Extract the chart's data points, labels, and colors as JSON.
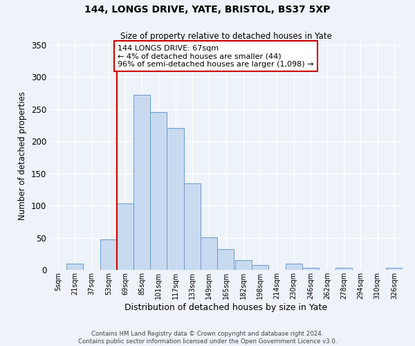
{
  "title": "144, LONGS DRIVE, YATE, BRISTOL, BS37 5XP",
  "subtitle": "Size of property relative to detached houses in Yate",
  "xlabel": "Distribution of detached houses by size in Yate",
  "ylabel": "Number of detached properties",
  "bin_labels": [
    "5sqm",
    "21sqm",
    "37sqm",
    "53sqm",
    "69sqm",
    "85sqm",
    "101sqm",
    "117sqm",
    "133sqm",
    "149sqm",
    "165sqm",
    "182sqm",
    "198sqm",
    "214sqm",
    "230sqm",
    "246sqm",
    "262sqm",
    "278sqm",
    "294sqm",
    "310sqm",
    "326sqm"
  ],
  "bin_edges": [
    5,
    21,
    37,
    53,
    69,
    85,
    101,
    117,
    133,
    149,
    165,
    182,
    198,
    214,
    230,
    246,
    262,
    278,
    294,
    310,
    326,
    342
  ],
  "bar_heights": [
    0,
    10,
    0,
    47,
    103,
    272,
    245,
    220,
    135,
    51,
    32,
    15,
    8,
    0,
    10,
    3,
    0,
    3,
    0,
    0,
    3
  ],
  "bar_color": "#c8daf0",
  "bar_edge_color": "#6699cc",
  "vline_x": 69,
  "vline_color": "#cc0000",
  "annotation_text": "144 LONGS DRIVE: 67sqm\n← 4% of detached houses are smaller (44)\n96% of semi-detached houses are larger (1,098) →",
  "annotation_box_color": "#cc0000",
  "annotation_fontsize": 8.0,
  "ylim": [
    0,
    355
  ],
  "yticks": [
    0,
    50,
    100,
    150,
    200,
    250,
    300,
    350
  ],
  "background_color": "#eef2f9",
  "footer_line1": "Contains HM Land Registry data © Crown copyright and database right 2024.",
  "footer_line2": "Contains public sector information licensed under the Open Government Licence v3.0."
}
